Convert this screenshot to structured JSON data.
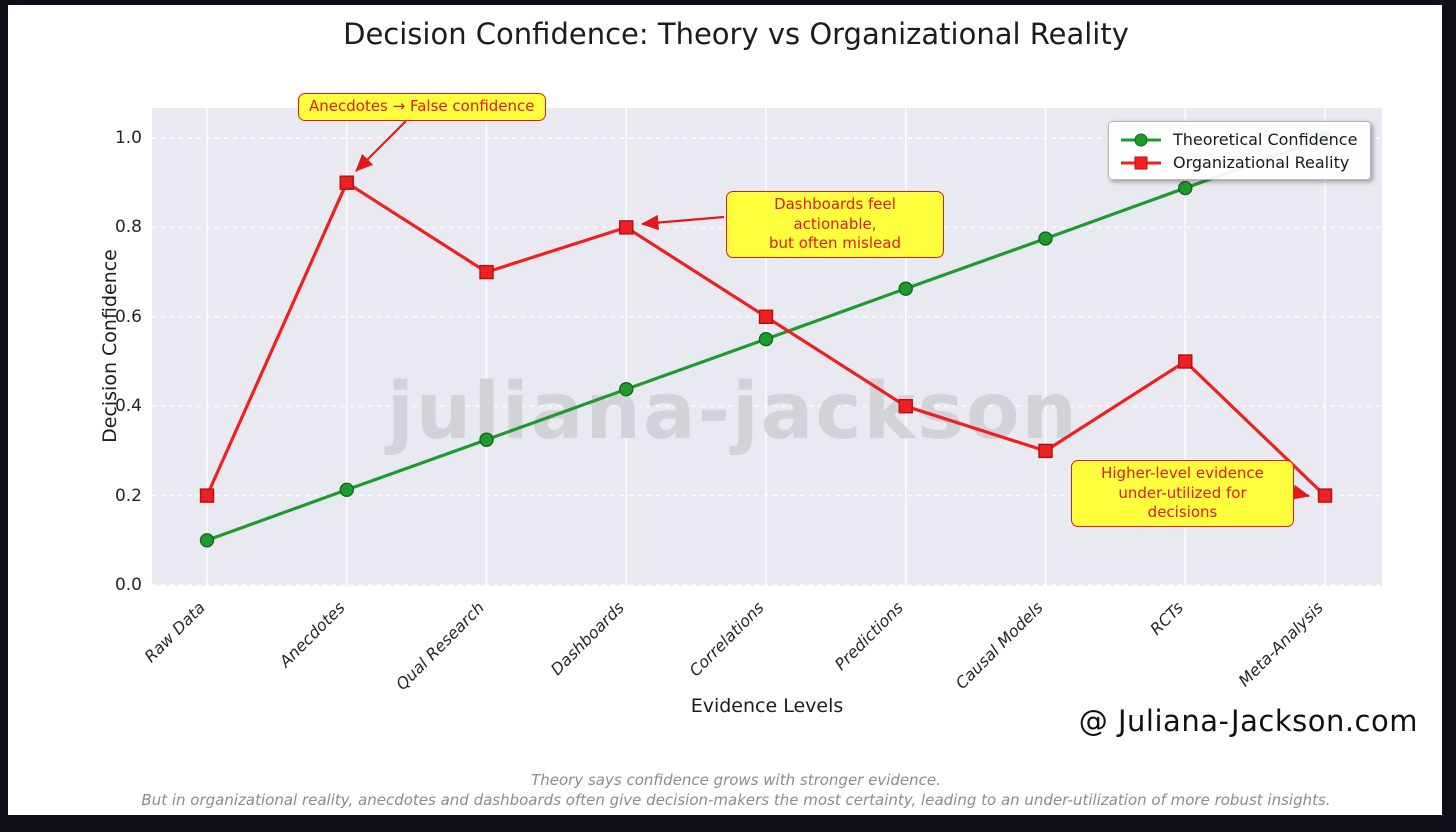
{
  "chart_data": {
    "type": "line",
    "title": "Decision Confidence: Theory vs Organizational Reality",
    "xlabel": "Evidence Levels",
    "ylabel": "Decision Confidence",
    "categories": [
      "Raw Data",
      "Anecdotes",
      "Qual Research",
      "Dashboards",
      "Correlations",
      "Predictions",
      "Causal Models",
      "RCTs",
      "Meta-Analysis"
    ],
    "yticks": [
      0.0,
      0.2,
      0.4,
      0.6,
      0.8,
      1.0
    ],
    "ylim": [
      0.0,
      1.07
    ],
    "grid": true,
    "legend_position": "upper right",
    "series": [
      {
        "name": "Theoretical Confidence",
        "color": "#1e9b2d",
        "edge_color": "#14641d",
        "marker": "circle",
        "values": [
          0.1,
          0.213,
          0.325,
          0.438,
          0.55,
          0.663,
          0.775,
          0.888,
          1.0
        ]
      },
      {
        "name": "Organizational Reality",
        "color": "#ee2020",
        "edge_color": "#b50f0f",
        "marker": "square",
        "values": [
          0.2,
          0.9,
          0.7,
          0.8,
          0.6,
          0.4,
          0.3,
          0.5,
          0.2
        ]
      }
    ],
    "annotations": [
      {
        "text": "Anecdotes → False confidence",
        "target_category": "Anecdotes",
        "target_value": 0.9
      },
      {
        "text": "Dashboards feel actionable,\nbut often mislead",
        "target_category": "Dashboards",
        "target_value": 0.8
      },
      {
        "text": "Higher-level evidence\nunder-utilized for decisions",
        "target_category": "Meta-Analysis",
        "target_value": 0.2
      }
    ]
  },
  "watermark": "juliana-jackson",
  "signature": "@ Juliana-Jackson.com",
  "footer": {
    "line1": "Theory says confidence grows with stronger evidence.",
    "line2": "But in organizational reality, anecdotes and dashboards often give decision-makers the most certainty, leading to an under-utilization of more robust insights."
  },
  "colors": {
    "frame": "#0e0e16",
    "canvas": "#ffffff",
    "plot_background": "#e9e9f2",
    "gridline": "#ffffff",
    "annotation_bg": "#ffff3d",
    "annotation_red": "#e31a1a",
    "watermark_gray": "#d2d2d9",
    "footer_gray": "#8c8c8c"
  }
}
